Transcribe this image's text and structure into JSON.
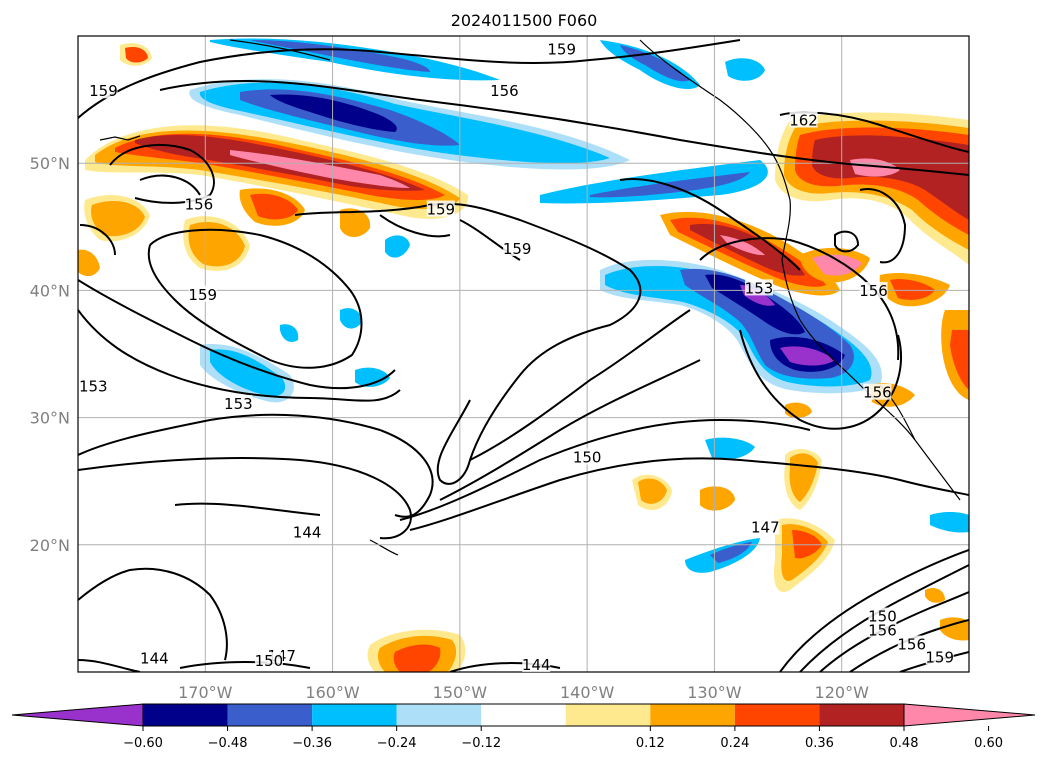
{
  "title": "2024011500 F060",
  "map": {
    "lon_range": [
      -180,
      -110
    ],
    "lat_range": [
      10,
      60
    ],
    "lon_ticks": [
      {
        "value": -170,
        "label": "170°W"
      },
      {
        "value": -160,
        "label": "160°W"
      },
      {
        "value": -150,
        "label": "150°W"
      },
      {
        "value": -140,
        "label": "140°W"
      },
      {
        "value": -130,
        "label": "130°W"
      },
      {
        "value": -120,
        "label": "120°W"
      }
    ],
    "lat_ticks": [
      {
        "value": 50,
        "label": "50°N"
      },
      {
        "value": 40,
        "label": "40°N"
      },
      {
        "value": 30,
        "label": "30°N"
      },
      {
        "value": 20,
        "label": "20°N"
      }
    ],
    "grid": true,
    "contour_labels": [
      {
        "text": "159",
        "lon": -142,
        "lat": 58.8
      },
      {
        "text": "159",
        "lon": -178,
        "lat": 55.5
      },
      {
        "text": "156",
        "lon": -146.5,
        "lat": 55.5
      },
      {
        "text": "162",
        "lon": -123,
        "lat": 53.2
      },
      {
        "text": "156",
        "lon": -170.5,
        "lat": 46.6
      },
      {
        "text": "159",
        "lon": -151.5,
        "lat": 46.2
      },
      {
        "text": "159",
        "lon": -145.5,
        "lat": 43.1
      },
      {
        "text": "159",
        "lon": -170.2,
        "lat": 39.5
      },
      {
        "text": "153",
        "lon": -126.5,
        "lat": 40.0
      },
      {
        "text": "156",
        "lon": -117.5,
        "lat": 39.8
      },
      {
        "text": "153",
        "lon": -178.8,
        "lat": 32.3
      },
      {
        "text": "153",
        "lon": -167.4,
        "lat": 30.9
      },
      {
        "text": "156",
        "lon": -117.2,
        "lat": 31.8
      },
      {
        "text": "150",
        "lon": -140.0,
        "lat": 26.7
      },
      {
        "text": "147",
        "lon": -126.0,
        "lat": 21.2
      },
      {
        "text": "144",
        "lon": -162.0,
        "lat": 20.8
      },
      {
        "text": "150",
        "lon": -116.8,
        "lat": 14.2
      },
      {
        "text": "156",
        "lon": -116.8,
        "lat": 13.1
      },
      {
        "text": "156",
        "lon": -114.5,
        "lat": 12.0
      },
      {
        "text": "159",
        "lon": -112.3,
        "lat": 11.0
      },
      {
        "text": "147",
        "lon": -164.0,
        "lat": 11.1
      },
      {
        "text": "144",
        "lon": -174.0,
        "lat": 10.9
      },
      {
        "text": "150",
        "lon": -165.0,
        "lat": 10.7
      },
      {
        "text": "144",
        "lon": -144.0,
        "lat": 10.4
      }
    ]
  },
  "colorbar": {
    "ticks": [
      "−0.60",
      "−0.48",
      "−0.36",
      "−0.24",
      "−0.12",
      "0.12",
      "0.24",
      "0.36",
      "0.48",
      "0.60"
    ],
    "colors": [
      "#9932cc",
      "#00008b",
      "#3a5fcd",
      "#00bfff",
      "#ade0f8",
      "#ffffff",
      "#ffe98f",
      "#ffa500",
      "#ff4500",
      "#b22222",
      "#ff88aa"
    ],
    "extend": "both"
  },
  "chart_data": {
    "type": "heatmap",
    "title": "2024011500 F060",
    "contour_levels": [
      144,
      147,
      150,
      153,
      156,
      159,
      162
    ],
    "shaded_levels": [
      -0.6,
      -0.48,
      -0.36,
      -0.24,
      -0.12,
      0.12,
      0.24,
      0.36,
      0.48,
      0.6
    ],
    "xlim": [
      -180,
      -110
    ],
    "ylim": [
      10,
      60
    ]
  }
}
